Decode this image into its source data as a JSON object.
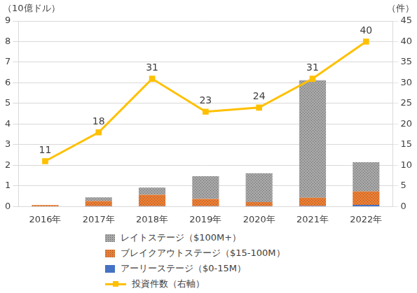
{
  "chart_data": {
    "type": "bar",
    "ylabel": "（10億ドル）",
    "y2label": "（件）",
    "categories": [
      "2016年",
      "2017年",
      "2018年",
      "2019年",
      "2020年",
      "2021年",
      "2022年"
    ],
    "series": [
      {
        "name": "アーリーステージ（$0-15M）",
        "type": "bar",
        "color": "#4472c4",
        "values": [
          0,
          0.02,
          0.02,
          0.02,
          0.02,
          0.03,
          0.08
        ]
      },
      {
        "name": "ブレイクアウトステージ（$15-100M）",
        "type": "bar",
        "color": "#ed7d31",
        "values": [
          0.07,
          0.25,
          0.55,
          0.35,
          0.2,
          0.4,
          0.65
        ]
      },
      {
        "name": "レイトステージ（$100M+）",
        "type": "bar",
        "color": "#a6a6a6",
        "values": [
          0,
          0.18,
          0.35,
          1.1,
          1.4,
          5.7,
          1.42
        ]
      },
      {
        "name": "投資件数（右軸）",
        "type": "line",
        "color": "#ffc000",
        "marker": "square",
        "axis": "y2",
        "data_labels": true,
        "values": [
          11,
          18,
          31,
          23,
          24,
          31,
          40
        ]
      }
    ],
    "ylim": [
      0,
      9
    ],
    "yticks": [
      0,
      1,
      2,
      3,
      4,
      5,
      6,
      7,
      8,
      9
    ],
    "y2lim": [
      0,
      45
    ],
    "y2ticks": [
      0,
      5,
      10,
      15,
      20,
      25,
      30,
      35,
      40,
      45
    ],
    "stacked": true,
    "grid": true,
    "legend": "bottom"
  }
}
